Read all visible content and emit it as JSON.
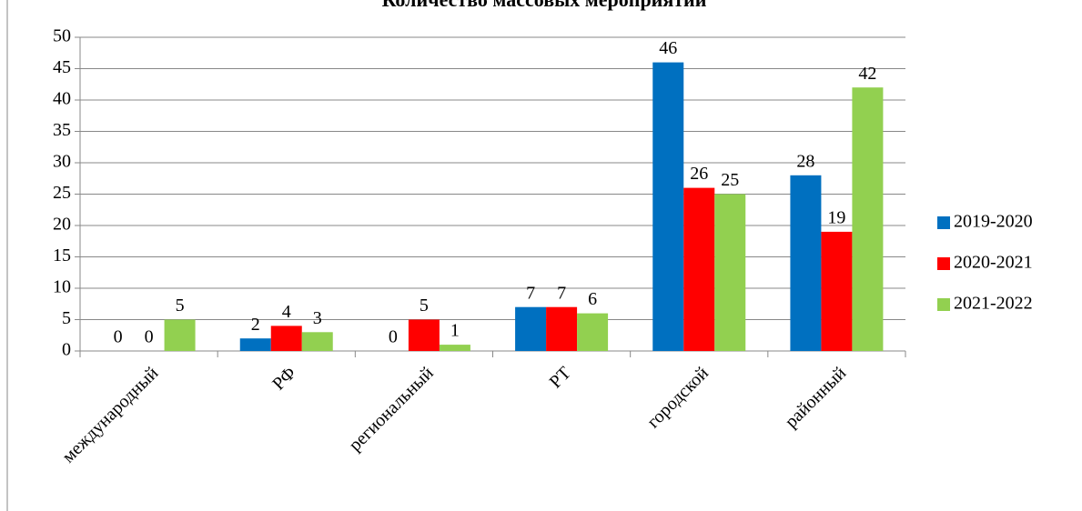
{
  "chart_data": {
    "type": "bar",
    "title": "Количество массовых мероприятий",
    "categories": [
      "международный",
      "РФ",
      "региональный",
      "РТ",
      "городской",
      "районный"
    ],
    "series": [
      {
        "name": "2019-2020",
        "color": "#0070c0",
        "values": [
          0,
          2,
          0,
          7,
          46,
          28
        ]
      },
      {
        "name": "2020-2021",
        "color": "#ff0000",
        "values": [
          0,
          4,
          5,
          7,
          26,
          19
        ]
      },
      {
        "name": "2021-2022",
        "color": "#92d050",
        "values": [
          5,
          3,
          1,
          6,
          25,
          42
        ]
      }
    ],
    "ylim": [
      0,
      50
    ],
    "yticks": [
      0,
      5,
      10,
      15,
      20,
      25,
      30,
      35,
      40,
      45,
      50
    ],
    "grid": true,
    "legend": "right"
  }
}
